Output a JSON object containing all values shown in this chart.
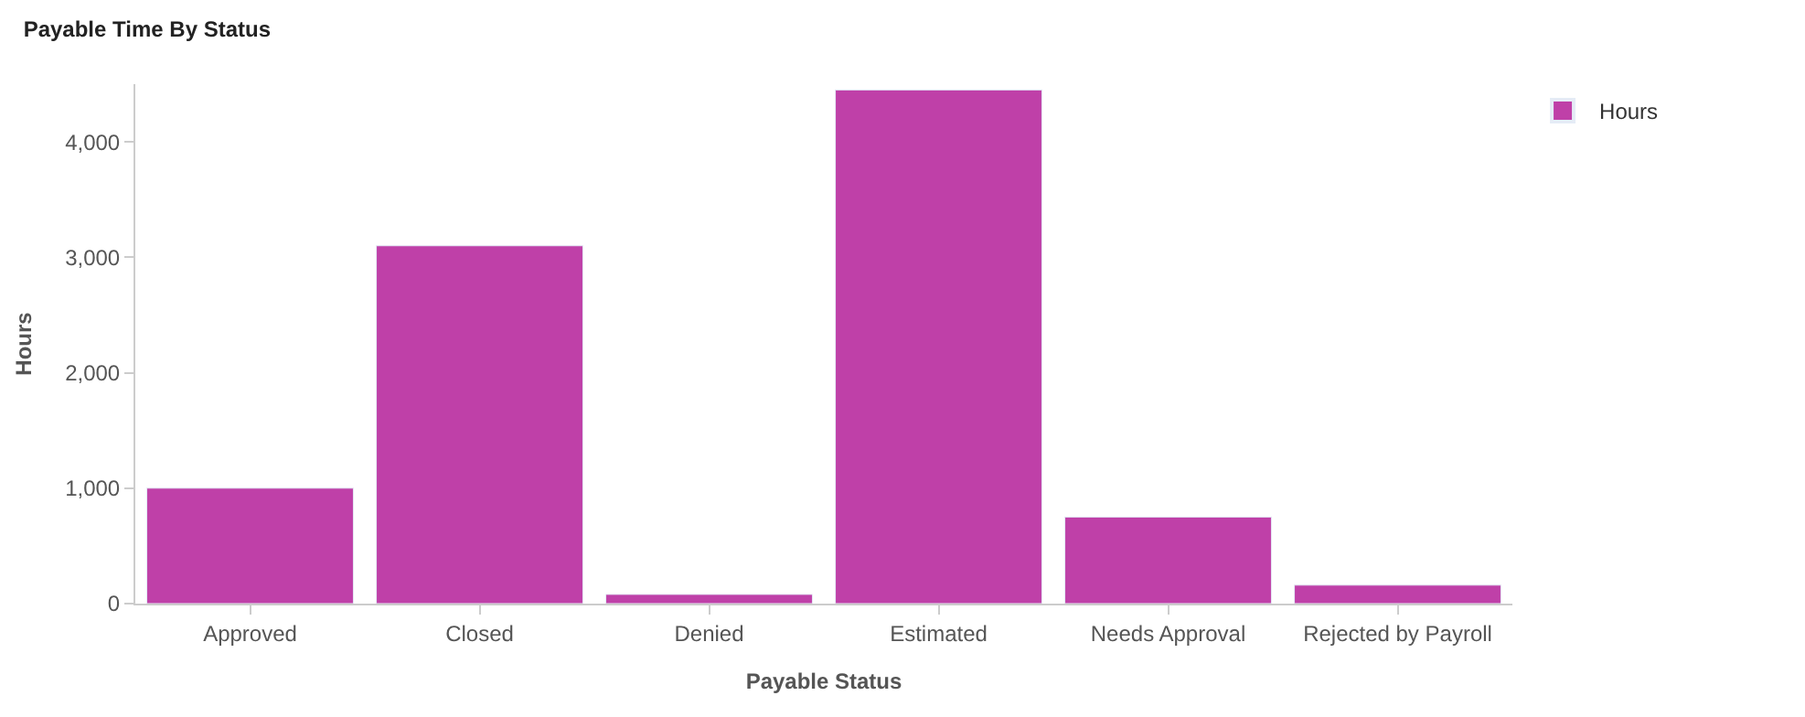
{
  "chart_data": {
    "type": "bar",
    "title": "Payable Time By Status",
    "xlabel": "Payable Status",
    "ylabel": "Hours",
    "categories": [
      "Approved",
      "Closed",
      "Denied",
      "Estimated",
      "Needs Approval",
      "Rejected by Payroll"
    ],
    "series": [
      {
        "name": "Hours",
        "color": "#bf40a8",
        "values": [
          1000,
          3100,
          80,
          4450,
          750,
          160
        ]
      }
    ],
    "ylim": [
      0,
      4500
    ],
    "yticks": [
      0,
      {
        "value": 1000,
        "label": "1,000"
      },
      {
        "value": 2000,
        "label": "2,000"
      },
      {
        "value": 3000,
        "label": "3,000"
      },
      {
        "value": 4000,
        "label": "4,000"
      }
    ],
    "legend": "top right"
  }
}
